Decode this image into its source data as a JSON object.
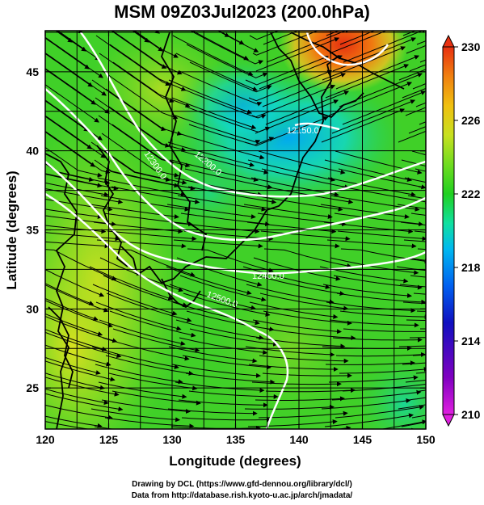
{
  "title": "MSM 09Z03Jul2023 (200.0hPa)",
  "xaxis": {
    "label": "Longitude (degrees)",
    "ticks": [
      "120",
      "125",
      "130",
      "135",
      "140",
      "145",
      "150"
    ],
    "range": [
      120,
      150
    ]
  },
  "yaxis": {
    "label": "Latitude  (degrees)",
    "ticks": [
      "25",
      "30",
      "35",
      "40",
      "45"
    ],
    "range": [
      22.4,
      47.6
    ]
  },
  "colorbar": {
    "ticks": [
      "230",
      "226",
      "222",
      "218",
      "214",
      "210"
    ],
    "range": [
      210,
      230
    ],
    "colors": [
      "#e020e0",
      "#8000c0",
      "#1010c0",
      "#0060f0",
      "#00b8f0",
      "#10e0a0",
      "#20d020",
      "#70dc20",
      "#c8e020",
      "#f0c010",
      "#f08010",
      "#e83010"
    ]
  },
  "contours": [
    {
      "label": "12150.0"
    },
    {
      "label": "12200.0"
    },
    {
      "label": "12300.0"
    },
    {
      "label": "12400.0"
    },
    {
      "label": "12500.0"
    }
  ],
  "credits": [
    "Drawing by DCL (https://www.gfd-dennou.org/library/dcl/)",
    "Data from http://database.rish.kyoto-u.ac.jp/arch/jmadata/"
  ]
}
